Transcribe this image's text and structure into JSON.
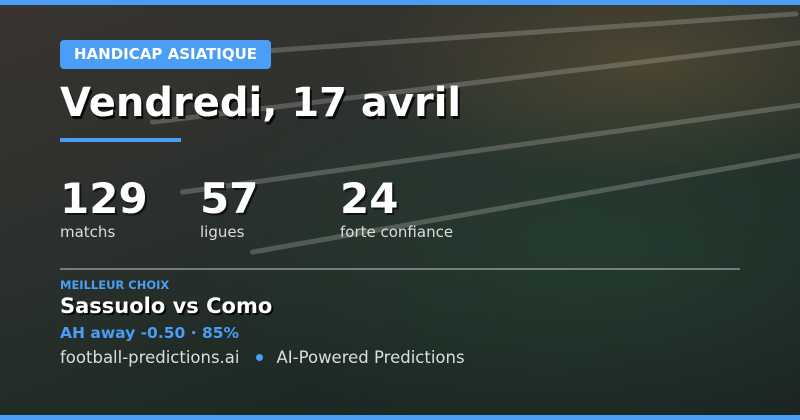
{
  "colors": {
    "accent": "#4a9ef5"
  },
  "badge": "HANDICAP ASIATIQUE",
  "title": "Vendredi, 17 avril",
  "stats": [
    {
      "value": "129",
      "label": "matchs"
    },
    {
      "value": "57",
      "label": "ligues"
    },
    {
      "value": "24",
      "label": "forte confiance"
    }
  ],
  "best": {
    "kicker": "MEILLEUR CHOIX",
    "match": "Sassuolo vs Como",
    "pick": "AH away -0.50 · 85%"
  },
  "footer": {
    "site": "football-predictions.ai",
    "tagline": "AI-Powered Predictions"
  }
}
